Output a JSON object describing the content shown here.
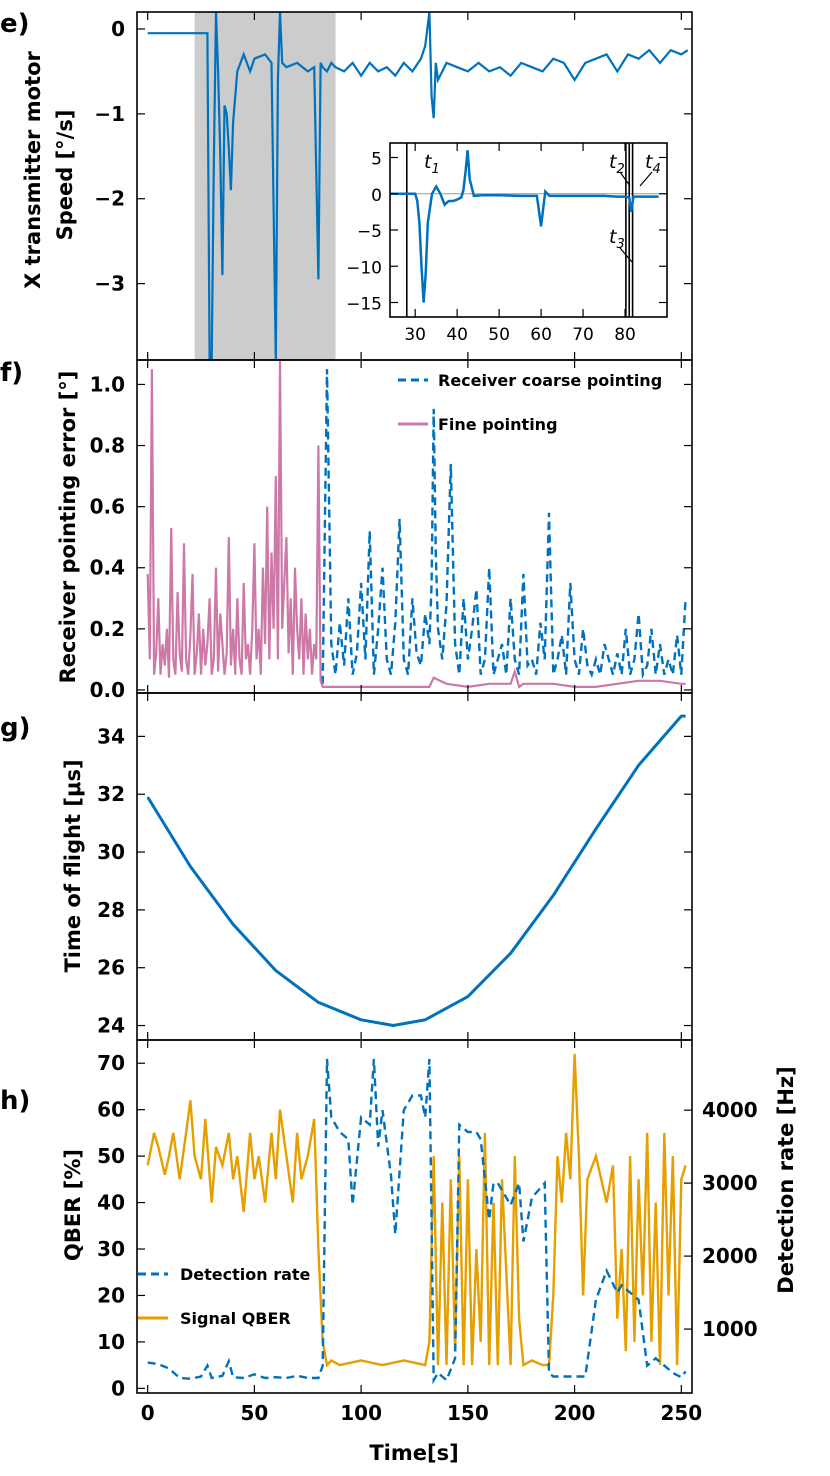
{
  "colors": {
    "blue": "#0072BD",
    "pink": "#CC79A7",
    "orange": "#E69F00",
    "shade": "#cccccc"
  },
  "chart_data": [
    {
      "type": "line",
      "panel": "e)",
      "ylabel_line1": "X transmitter motor",
      "ylabel_line2": "Speed [°/s]",
      "xlim": [
        -5,
        255
      ],
      "ylim": [
        -3.9,
        0.2
      ],
      "yticks": [
        0,
        -1,
        -2,
        -3
      ],
      "shaded_region": [
        22,
        88
      ],
      "series": [
        {
          "x": [
            0,
            10,
            20,
            28,
            29,
            30,
            31,
            32,
            33,
            34,
            35,
            36,
            37,
            38,
            39,
            40,
            42,
            45,
            48,
            50,
            55,
            58,
            60,
            61,
            62,
            63,
            65,
            70,
            75,
            78,
            80,
            81,
            82,
            84,
            86,
            88,
            92,
            96,
            100,
            104,
            108,
            112,
            116,
            120,
            124,
            128,
            130,
            132,
            133,
            134,
            135,
            136,
            138,
            140,
            145,
            150,
            155,
            160,
            165,
            170,
            175,
            180,
            185,
            190,
            195,
            200,
            205,
            210,
            215,
            220,
            225,
            230,
            235,
            240,
            245,
            250,
            253
          ],
          "y": [
            -0.05,
            -0.05,
            -0.05,
            -0.05,
            -3.9,
            -3.9,
            -1.6,
            0.2,
            -0.5,
            -1.5,
            -2.9,
            -0.9,
            -1.0,
            -1.4,
            -1.9,
            -1.1,
            -0.5,
            -0.3,
            -0.5,
            -0.35,
            -0.3,
            -0.4,
            -3.9,
            -0.6,
            0.2,
            -0.4,
            -0.45,
            -0.4,
            -0.5,
            -0.45,
            -2.95,
            -0.4,
            -0.45,
            -0.5,
            -0.4,
            -0.45,
            -0.5,
            -0.4,
            -0.55,
            -0.4,
            -0.5,
            -0.45,
            -0.55,
            -0.4,
            -0.5,
            -0.35,
            -0.2,
            0.2,
            -0.8,
            -1.05,
            -0.4,
            -0.6,
            -0.5,
            -0.4,
            -0.45,
            -0.5,
            -0.4,
            -0.5,
            -0.45,
            -0.55,
            -0.4,
            -0.45,
            -0.5,
            -0.35,
            -0.4,
            -0.6,
            -0.4,
            -0.35,
            -0.3,
            -0.5,
            -0.3,
            -0.35,
            -0.25,
            -0.4,
            -0.25,
            -0.3,
            -0.25
          ]
        }
      ],
      "inset": {
        "xlim": [
          24,
          90
        ],
        "ylim": [
          -17,
          7
        ],
        "xticks": [
          30,
          40,
          50,
          60,
          70,
          80
        ],
        "yticks": [
          5,
          0,
          -5,
          -10,
          -15
        ],
        "vlines": [
          28,
          80.2,
          81.0,
          81.8
        ],
        "annotations": [
          {
            "base": "t",
            "sub": "1"
          },
          {
            "base": "t",
            "sub": "2"
          },
          {
            "base": "t",
            "sub": "3"
          },
          {
            "base": "t",
            "sub": "4"
          }
        ],
        "x": [
          24,
          28,
          30,
          30.5,
          31,
          31.5,
          32,
          32.5,
          33,
          34,
          35,
          36,
          37,
          38,
          39,
          40,
          41,
          41.5,
          42,
          42.5,
          43,
          44,
          46,
          50,
          55,
          58,
          59,
          60,
          60.5,
          61,
          62,
          65,
          70,
          75,
          78,
          80,
          81,
          81.5,
          82,
          83,
          85,
          88
        ],
        "y": [
          0,
          0,
          0,
          -1,
          -4,
          -10,
          -15,
          -11,
          -4,
          0,
          1,
          0,
          -1.5,
          -1,
          -1,
          -0.8,
          -0.5,
          0.5,
          3,
          6,
          2,
          -0.3,
          -0.2,
          -0.2,
          -0.3,
          -0.3,
          -0.3,
          -4.5,
          -2,
          0.3,
          -0.3,
          -0.3,
          -0.3,
          -0.3,
          -0.4,
          -0.4,
          -0.5,
          -2.5,
          -0.4,
          -0.4,
          -0.4,
          -0.4
        ]
      }
    },
    {
      "type": "line",
      "panel": "f)",
      "ylabel": "Receiver pointing error [°]",
      "xlim": [
        -5,
        255
      ],
      "ylim": [
        -0.01,
        1.08
      ],
      "yticks": [
        0.0,
        0.2,
        0.4,
        0.6,
        0.8,
        1.0
      ],
      "legend": "top-right",
      "series": [
        {
          "name": "Receiver coarse pointing",
          "style": "dashed",
          "x": [
            82,
            84,
            86,
            88,
            90,
            92,
            94,
            96,
            98,
            100,
            102,
            104,
            106,
            108,
            110,
            112,
            114,
            116,
            118,
            120,
            122,
            124,
            126,
            128,
            130,
            132,
            133,
            134,
            135,
            136,
            138,
            140,
            142,
            144,
            146,
            148,
            150,
            152,
            154,
            156,
            158,
            160,
            162,
            164,
            166,
            168,
            170,
            172,
            174,
            176,
            178,
            180,
            182,
            184,
            186,
            188,
            190,
            192,
            194,
            196,
            198,
            200,
            202,
            204,
            206,
            208,
            210,
            212,
            214,
            216,
            218,
            220,
            222,
            224,
            226,
            228,
            230,
            232,
            234,
            236,
            238,
            240,
            242,
            244,
            246,
            248,
            250,
            252
          ],
          "y": [
            0.02,
            1.05,
            0.15,
            0.05,
            0.22,
            0.08,
            0.3,
            0.05,
            0.12,
            0.35,
            0.1,
            0.52,
            0.05,
            0.2,
            0.4,
            0.1,
            0.05,
            0.22,
            0.56,
            0.1,
            0.05,
            0.3,
            0.12,
            0.08,
            0.25,
            0.15,
            0.35,
            0.92,
            0.45,
            0.2,
            0.1,
            0.28,
            0.74,
            0.15,
            0.05,
            0.3,
            0.1,
            0.2,
            0.33,
            0.05,
            0.1,
            0.4,
            0.05,
            0.1,
            0.15,
            0.05,
            0.3,
            0.1,
            0.05,
            0.38,
            0.08,
            0.1,
            0.05,
            0.22,
            0.1,
            0.58,
            0.05,
            0.1,
            0.18,
            0.05,
            0.35,
            0.1,
            0.05,
            0.2,
            0.08,
            0.05,
            0.1,
            0.05,
            0.15,
            0.1,
            0.05,
            0.12,
            0.05,
            0.2,
            0.05,
            0.1,
            0.25,
            0.05,
            0.08,
            0.2,
            0.05,
            0.15,
            0.05,
            0.1,
            0.05,
            0.18,
            0.05,
            0.3
          ]
        },
        {
          "name": "Fine pointing",
          "style": "solid",
          "x": [
            0,
            1,
            2,
            3,
            4,
            5,
            6,
            7,
            8,
            9,
            10,
            11,
            12,
            13,
            14,
            15,
            16,
            17,
            18,
            19,
            20,
            21,
            22,
            23,
            24,
            25,
            26,
            27,
            28,
            29,
            30,
            31,
            32,
            33,
            34,
            35,
            36,
            37,
            38,
            39,
            40,
            41,
            42,
            43,
            44,
            45,
            46,
            47,
            48,
            49,
            50,
            51,
            52,
            53,
            54,
            55,
            56,
            57,
            58,
            59,
            60,
            61,
            62,
            63,
            64,
            65,
            66,
            67,
            68,
            69,
            70,
            71,
            72,
            73,
            74,
            75,
            76,
            77,
            78,
            79,
            80,
            81,
            82,
            90,
            100,
            110,
            120,
            128,
            132,
            134,
            140,
            150,
            160,
            170,
            172,
            174,
            176,
            180,
            190,
            200,
            210,
            220,
            230,
            240,
            250,
            252
          ],
          "y": [
            0.38,
            0.1,
            1.05,
            0.05,
            0.12,
            0.3,
            0.05,
            0.15,
            0.08,
            0.2,
            0.04,
            0.53,
            0.1,
            0.05,
            0.32,
            0.12,
            0.06,
            0.48,
            0.1,
            0.05,
            0.18,
            0.38,
            0.05,
            0.12,
            0.25,
            0.05,
            0.2,
            0.08,
            0.15,
            0.3,
            0.05,
            0.1,
            0.4,
            0.06,
            0.25,
            0.15,
            0.05,
            0.12,
            0.5,
            0.08,
            0.2,
            0.05,
            0.3,
            0.1,
            0.05,
            0.35,
            0.1,
            0.15,
            0.05,
            0.2,
            0.48,
            0.1,
            0.2,
            0.05,
            0.4,
            0.15,
            0.6,
            0.1,
            0.45,
            0.2,
            0.7,
            0.1,
            1.08,
            0.2,
            0.35,
            0.5,
            0.12,
            0.3,
            0.05,
            0.4,
            0.2,
            0.1,
            0.3,
            0.05,
            0.25,
            0.1,
            0.2,
            0.05,
            0.15,
            0.1,
            0.8,
            0.03,
            0.01,
            0.01,
            0.01,
            0.01,
            0.01,
            0.01,
            0.01,
            0.04,
            0.02,
            0.01,
            0.02,
            0.02,
            0.06,
            0.01,
            0.02,
            0.02,
            0.02,
            0.01,
            0.01,
            0.02,
            0.03,
            0.03,
            0.02,
            0.02
          ]
        }
      ]
    },
    {
      "type": "line",
      "panel": "g)",
      "ylabel": "Time of flight [μs]",
      "xlim": [
        -5,
        255
      ],
      "ylim": [
        23.5,
        35.5
      ],
      "yticks": [
        24,
        26,
        28,
        30,
        32,
        34
      ],
      "series": [
        {
          "x": [
            0,
            20,
            40,
            60,
            80,
            100,
            115,
            130,
            150,
            170,
            190,
            210,
            230,
            250,
            252
          ],
          "y": [
            31.9,
            29.5,
            27.5,
            25.9,
            24.8,
            24.2,
            24.0,
            24.2,
            25.0,
            26.5,
            28.5,
            30.8,
            33.0,
            34.7,
            34.7
          ]
        }
      ]
    },
    {
      "type": "line",
      "panel": "h)",
      "ylabel": "QBER [%]",
      "y2label": "Detection rate [Hz]",
      "xlabel": "Time[s]",
      "xlim": [
        -5,
        255
      ],
      "xticks": [
        0,
        50,
        100,
        150,
        200,
        250
      ],
      "ylim": [
        -1,
        75
      ],
      "yticks": [
        0,
        10,
        20,
        30,
        40,
        50,
        60,
        70
      ],
      "y2lim": [
        124,
        4961
      ],
      "y2ticks": [
        1000,
        2000,
        3000,
        4000
      ],
      "legend": "lower-left",
      "series": [
        {
          "name": "Detection rate",
          "style": "dashed",
          "axis": "right",
          "x": [
            0,
            5,
            10,
            15,
            20,
            25,
            28,
            30,
            35,
            38,
            40,
            45,
            50,
            55,
            60,
            65,
            70,
            75,
            80,
            82,
            84,
            86,
            90,
            94,
            96,
            100,
            104,
            106,
            108,
            110,
            114,
            116,
            120,
            124,
            128,
            130,
            132,
            134,
            136,
            140,
            144,
            146,
            150,
            152,
            154,
            156,
            160,
            162,
            164,
            170,
            174,
            176,
            180,
            186,
            188,
            190,
            200,
            205,
            210,
            215,
            220,
            222,
            226,
            230,
            234,
            238,
            242,
            246,
            250,
            252
          ],
          "y": [
            540,
            520,
            460,
            330,
            320,
            350,
            500,
            330,
            360,
            560,
            340,
            330,
            380,
            330,
            340,
            330,
            360,
            330,
            330,
            500,
            4700,
            3900,
            3700,
            3600,
            2700,
            3900,
            3800,
            4700,
            3500,
            4000,
            3100,
            2300,
            4000,
            4200,
            4200,
            3900,
            4700,
            300,
            400,
            300,
            600,
            3800,
            3700,
            3700,
            3700,
            3600,
            2500,
            3000,
            3000,
            2700,
            3000,
            2200,
            2800,
            3000,
            400,
            350,
            350,
            350,
            1400,
            1800,
            1500,
            1600,
            1500,
            1400,
            500,
            600,
            500,
            400,
            340,
            420
          ]
        },
        {
          "name": "Signal QBER",
          "style": "solid",
          "axis": "left",
          "x": [
            0,
            3,
            5,
            8,
            10,
            12,
            15,
            18,
            20,
            22,
            25,
            27,
            30,
            32,
            35,
            38,
            40,
            42,
            45,
            48,
            50,
            52,
            55,
            58,
            60,
            62,
            65,
            68,
            70,
            72,
            75,
            78,
            80,
            82,
            84,
            86,
            90,
            100,
            110,
            120,
            130,
            132,
            134,
            136,
            138,
            140,
            142,
            144,
            146,
            148,
            150,
            152,
            154,
            156,
            158,
            160,
            162,
            164,
            166,
            170,
            172,
            174,
            176,
            180,
            185,
            188,
            190,
            192,
            194,
            196,
            198,
            200,
            202,
            204,
            206,
            210,
            215,
            218,
            220,
            222,
            224,
            226,
            228,
            230,
            232,
            234,
            236,
            238,
            240,
            242,
            244,
            246,
            248,
            250,
            252
          ],
          "y": [
            48,
            55,
            52,
            46,
            50,
            55,
            45,
            55,
            62,
            50,
            45,
            58,
            40,
            52,
            48,
            55,
            45,
            50,
            38,
            55,
            45,
            50,
            40,
            55,
            45,
            60,
            50,
            40,
            55,
            45,
            50,
            58,
            30,
            10,
            5,
            6,
            5,
            6,
            5,
            6,
            5,
            10,
            50,
            5,
            40,
            5,
            45,
            8,
            50,
            5,
            45,
            5,
            30,
            10,
            55,
            5,
            40,
            5,
            45,
            5,
            50,
            15,
            5,
            6,
            5,
            5,
            20,
            50,
            40,
            55,
            45,
            72,
            50,
            20,
            45,
            50,
            40,
            48,
            15,
            30,
            8,
            50,
            10,
            45,
            20,
            55,
            10,
            40,
            5,
            55,
            20,
            50,
            5,
            45,
            48
          ]
        }
      ]
    }
  ]
}
